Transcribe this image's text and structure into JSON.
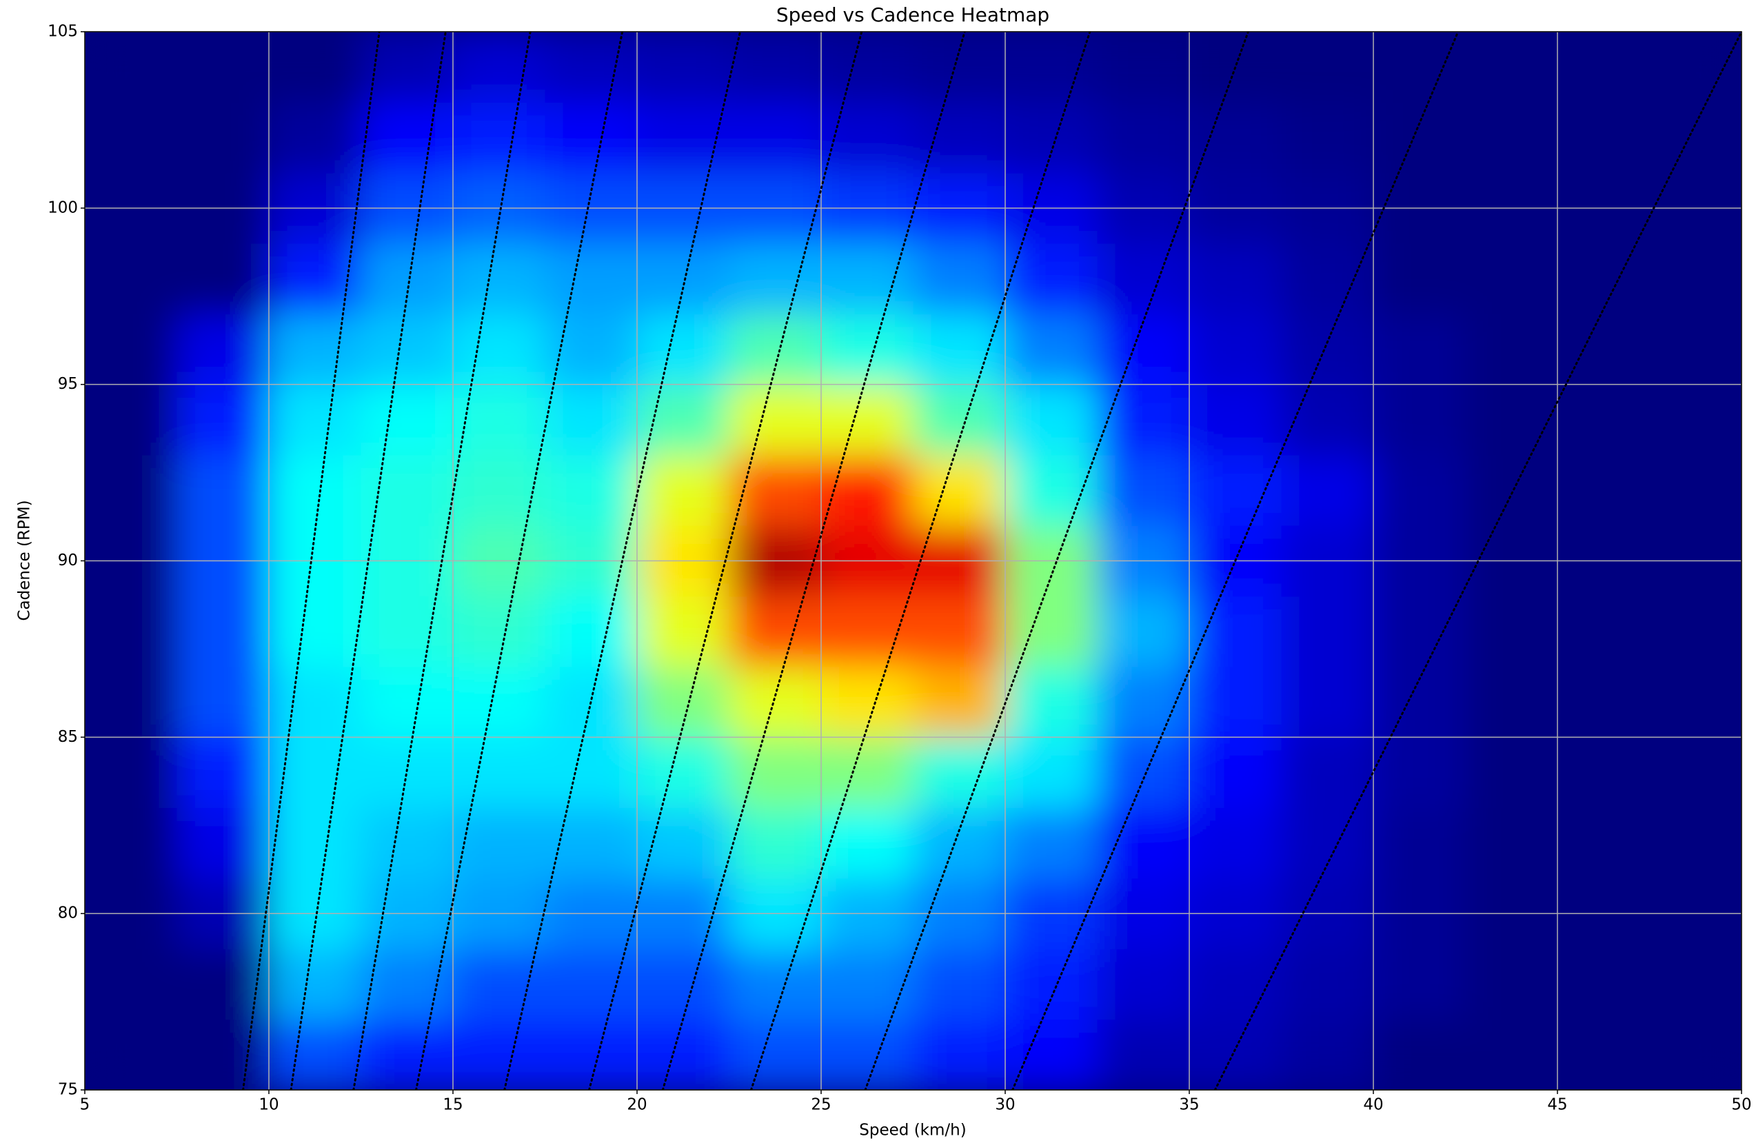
{
  "chart_data": {
    "type": "heatmap",
    "title": "Speed vs Cadence Heatmap",
    "x_label": "Speed (km/h)",
    "y_label": "Cadence (RPM)",
    "xlim": [
      5,
      50
    ],
    "ylim": [
      75,
      105
    ],
    "xticks": [
      5,
      10,
      15,
      20,
      25,
      30,
      35,
      40,
      45,
      50
    ],
    "yticks": [
      75,
      80,
      85,
      90,
      95,
      100,
      105
    ],
    "grid": true,
    "colormap": "jet",
    "x_bins": [
      5,
      7.5,
      10,
      12.5,
      15,
      17.5,
      20,
      22.5,
      25,
      27.5,
      30,
      32.5,
      35,
      37.5,
      40,
      42.5,
      45,
      47.5,
      50
    ],
    "y_bins": [
      75,
      77,
      79,
      81,
      83,
      85,
      87,
      89,
      91,
      93,
      95,
      97,
      99,
      101,
      103,
      105
    ],
    "z": [
      [
        0,
        0,
        0.2,
        0.15,
        0.15,
        0.15,
        0.15,
        0.2,
        0.2,
        0.15,
        0.12,
        0.05,
        0.05,
        0.03,
        0,
        0,
        0,
        0
      ],
      [
        0,
        0,
        0.3,
        0.25,
        0.2,
        0.2,
        0.2,
        0.25,
        0.25,
        0.2,
        0.15,
        0.08,
        0.06,
        0.04,
        0.02,
        0,
        0,
        0
      ],
      [
        0,
        0.05,
        0.35,
        0.3,
        0.28,
        0.25,
        0.25,
        0.35,
        0.3,
        0.25,
        0.18,
        0.1,
        0.08,
        0.05,
        0.02,
        0,
        0,
        0
      ],
      [
        0,
        0.1,
        0.35,
        0.32,
        0.3,
        0.3,
        0.32,
        0.42,
        0.38,
        0.3,
        0.25,
        0.12,
        0.1,
        0.06,
        0.02,
        0,
        0,
        0
      ],
      [
        0,
        0.15,
        0.35,
        0.35,
        0.35,
        0.35,
        0.4,
        0.5,
        0.5,
        0.4,
        0.35,
        0.2,
        0.12,
        0.06,
        0.03,
        0,
        0,
        0
      ],
      [
        0,
        0.2,
        0.35,
        0.38,
        0.38,
        0.35,
        0.5,
        0.6,
        0.65,
        0.7,
        0.4,
        0.25,
        0.15,
        0.08,
        0.03,
        0,
        0,
        0
      ],
      [
        0,
        0.2,
        0.38,
        0.4,
        0.42,
        0.38,
        0.6,
        0.8,
        0.8,
        0.8,
        0.5,
        0.3,
        0.15,
        0.08,
        0.03,
        0,
        0,
        0
      ],
      [
        0,
        0.2,
        0.38,
        0.4,
        0.45,
        0.42,
        0.65,
        0.95,
        0.9,
        0.9,
        0.5,
        0.25,
        0.12,
        0.08,
        0.03,
        0,
        0,
        0
      ],
      [
        0,
        0.2,
        0.38,
        0.4,
        0.42,
        0.4,
        0.6,
        0.8,
        0.85,
        0.65,
        0.4,
        0.2,
        0.15,
        0.1,
        0.03,
        0,
        0,
        0
      ],
      [
        0,
        0.15,
        0.35,
        0.38,
        0.4,
        0.35,
        0.45,
        0.6,
        0.6,
        0.45,
        0.35,
        0.15,
        0.1,
        0.05,
        0.02,
        0,
        0,
        0
      ],
      [
        0,
        0.1,
        0.3,
        0.32,
        0.35,
        0.3,
        0.35,
        0.45,
        0.4,
        0.35,
        0.25,
        0.12,
        0.08,
        0.04,
        0.02,
        0,
        0,
        0
      ],
      [
        0,
        0,
        0.15,
        0.28,
        0.3,
        0.28,
        0.28,
        0.3,
        0.3,
        0.25,
        0.15,
        0.08,
        0.06,
        0.03,
        0,
        0,
        0,
        0
      ],
      [
        0,
        0,
        0.08,
        0.2,
        0.22,
        0.2,
        0.2,
        0.2,
        0.18,
        0.15,
        0.1,
        0.05,
        0.03,
        0.02,
        0,
        0,
        0,
        0
      ],
      [
        0,
        0,
        0.03,
        0.12,
        0.15,
        0.12,
        0.1,
        0.1,
        0.08,
        0.06,
        0.05,
        0.03,
        0.02,
        0.01,
        0,
        0,
        0,
        0
      ],
      [
        0,
        0,
        0,
        0.05,
        0.08,
        0.06,
        0.05,
        0.04,
        0.03,
        0.02,
        0.02,
        0.01,
        0,
        0,
        0,
        0,
        0,
        0
      ]
    ],
    "gear_lines": [
      [
        9.3,
        13.0
      ],
      [
        10.6,
        14.8
      ],
      [
        12.3,
        17.1
      ],
      [
        14.0,
        19.6
      ],
      [
        16.4,
        22.8
      ],
      [
        18.7,
        26.1
      ],
      [
        20.7,
        28.9
      ],
      [
        23.1,
        32.3
      ],
      [
        26.2,
        36.6
      ],
      [
        30.2,
        42.3
      ],
      [
        35.7,
        50.0
      ]
    ],
    "gear_line_color": "#000000"
  }
}
